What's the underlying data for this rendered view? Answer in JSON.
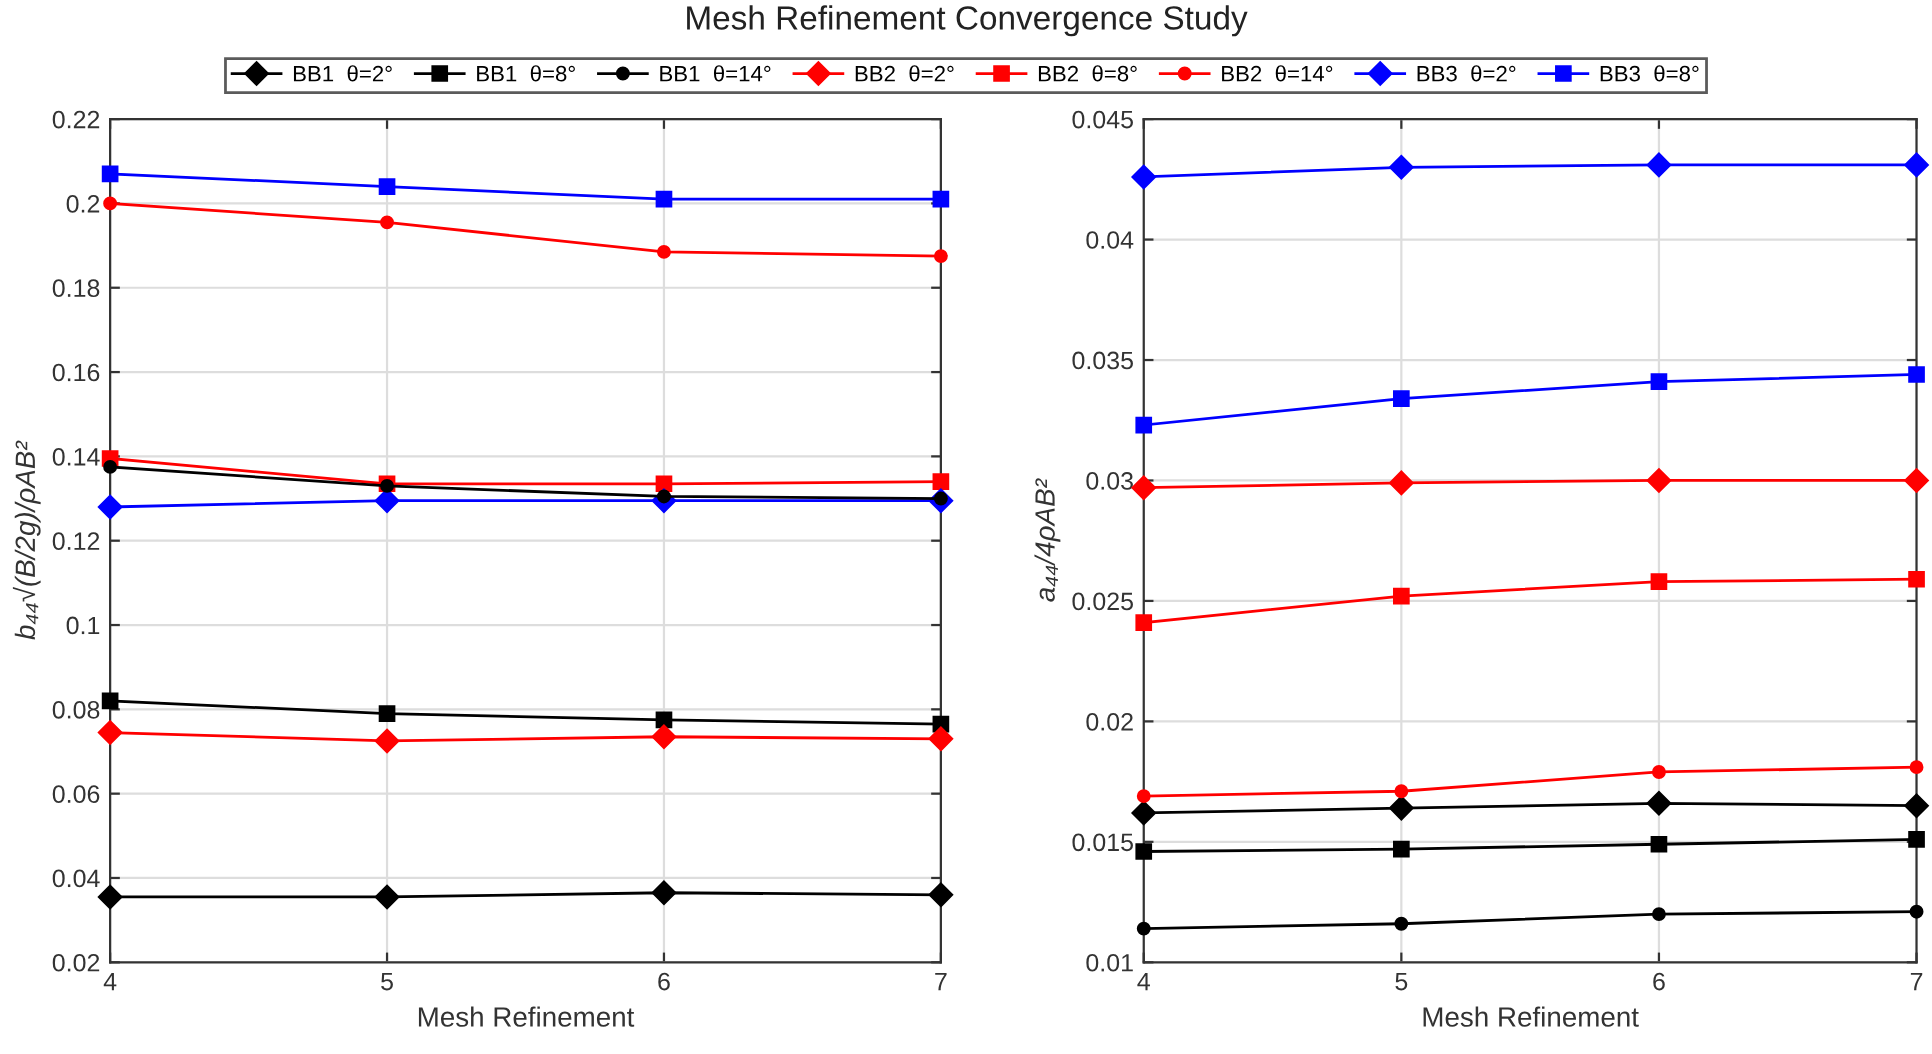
{
  "chart_data": [
    {
      "type": "line",
      "title": "Mesh Refinement Convergence Study",
      "xlabel": "Mesh Refinement",
      "ylabel": "b₄₄√(B/2g)/ρAB²",
      "x": [
        4,
        5,
        6,
        7
      ],
      "xlim": [
        4,
        7
      ],
      "xticks": [
        4,
        5,
        6,
        7
      ],
      "ylim": [
        0.02,
        0.22
      ],
      "yticks": [
        0.02,
        0.04,
        0.06,
        0.08,
        0.1,
        0.12,
        0.14,
        0.16,
        0.18,
        0.2,
        0.22
      ],
      "grid": true,
      "legend": "top",
      "line_style": "solid",
      "series": [
        {
          "name": "BB1  θ=2°",
          "color": "#000000",
          "marker": "diamond",
          "values": [
            0.0355,
            0.0355,
            0.0365,
            0.036
          ]
        },
        {
          "name": "BB1  θ=8°",
          "color": "#000000",
          "marker": "square",
          "values": [
            0.082,
            0.079,
            0.0775,
            0.0765
          ]
        },
        {
          "name": "BB1  θ=14°",
          "color": "#000000",
          "marker": "circle",
          "values": [
            0.1375,
            0.133,
            0.1305,
            0.13
          ]
        },
        {
          "name": "BB2  θ=2°",
          "color": "#ff0000",
          "marker": "diamond",
          "values": [
            0.0745,
            0.0725,
            0.0735,
            0.073
          ]
        },
        {
          "name": "BB2  θ=8°",
          "color": "#ff0000",
          "marker": "square",
          "values": [
            0.1395,
            0.1335,
            0.1335,
            0.134
          ]
        },
        {
          "name": "BB2  θ=14°",
          "color": "#ff0000",
          "marker": "circle",
          "values": [
            0.2,
            0.1955,
            0.1885,
            0.1875
          ]
        },
        {
          "name": "BB3  θ=2°",
          "color": "#0000ff",
          "marker": "diamond",
          "values": [
            0.128,
            0.1295,
            0.1295,
            0.1295
          ]
        },
        {
          "name": "BB3  θ=8°",
          "color": "#0000ff",
          "marker": "square",
          "values": [
            0.207,
            0.204,
            0.201,
            0.201
          ]
        }
      ]
    },
    {
      "type": "line",
      "xlabel": "Mesh Refinement",
      "ylabel": "a₄₄/4ρAB²",
      "x": [
        4,
        5,
        6,
        7
      ],
      "xlim": [
        4,
        7
      ],
      "xticks": [
        4,
        5,
        6,
        7
      ],
      "ylim": [
        0.01,
        0.045
      ],
      "yticks": [
        0.01,
        0.015,
        0.02,
        0.025,
        0.03,
        0.035,
        0.04,
        0.045
      ],
      "grid": true,
      "line_style": "solid",
      "series": [
        {
          "name": "BB1  θ=2°",
          "color": "#000000",
          "marker": "diamond",
          "values": [
            0.0162,
            0.0164,
            0.0166,
            0.0165
          ]
        },
        {
          "name": "BB1  θ=8°",
          "color": "#000000",
          "marker": "square",
          "values": [
            0.0146,
            0.0147,
            0.0149,
            0.0151
          ]
        },
        {
          "name": "BB1  θ=14°",
          "color": "#000000",
          "marker": "circle",
          "values": [
            0.0114,
            0.0116,
            0.012,
            0.0121
          ]
        },
        {
          "name": "BB2  θ=2°",
          "color": "#ff0000",
          "marker": "diamond",
          "values": [
            0.0297,
            0.0299,
            0.03,
            0.03
          ]
        },
        {
          "name": "BB2  θ=8°",
          "color": "#ff0000",
          "marker": "square",
          "values": [
            0.0241,
            0.0252,
            0.0258,
            0.0259
          ]
        },
        {
          "name": "BB2  θ=14°",
          "color": "#ff0000",
          "marker": "circle",
          "values": [
            0.0169,
            0.0171,
            0.0179,
            0.0181
          ]
        },
        {
          "name": "BB3  θ=2°",
          "color": "#0000ff",
          "marker": "diamond",
          "values": [
            0.0426,
            0.043,
            0.0431,
            0.0431
          ]
        },
        {
          "name": "BB3  θ=8°",
          "color": "#0000ff",
          "marker": "square",
          "values": [
            0.0323,
            0.0334,
            0.0341,
            0.0344
          ]
        }
      ]
    }
  ]
}
